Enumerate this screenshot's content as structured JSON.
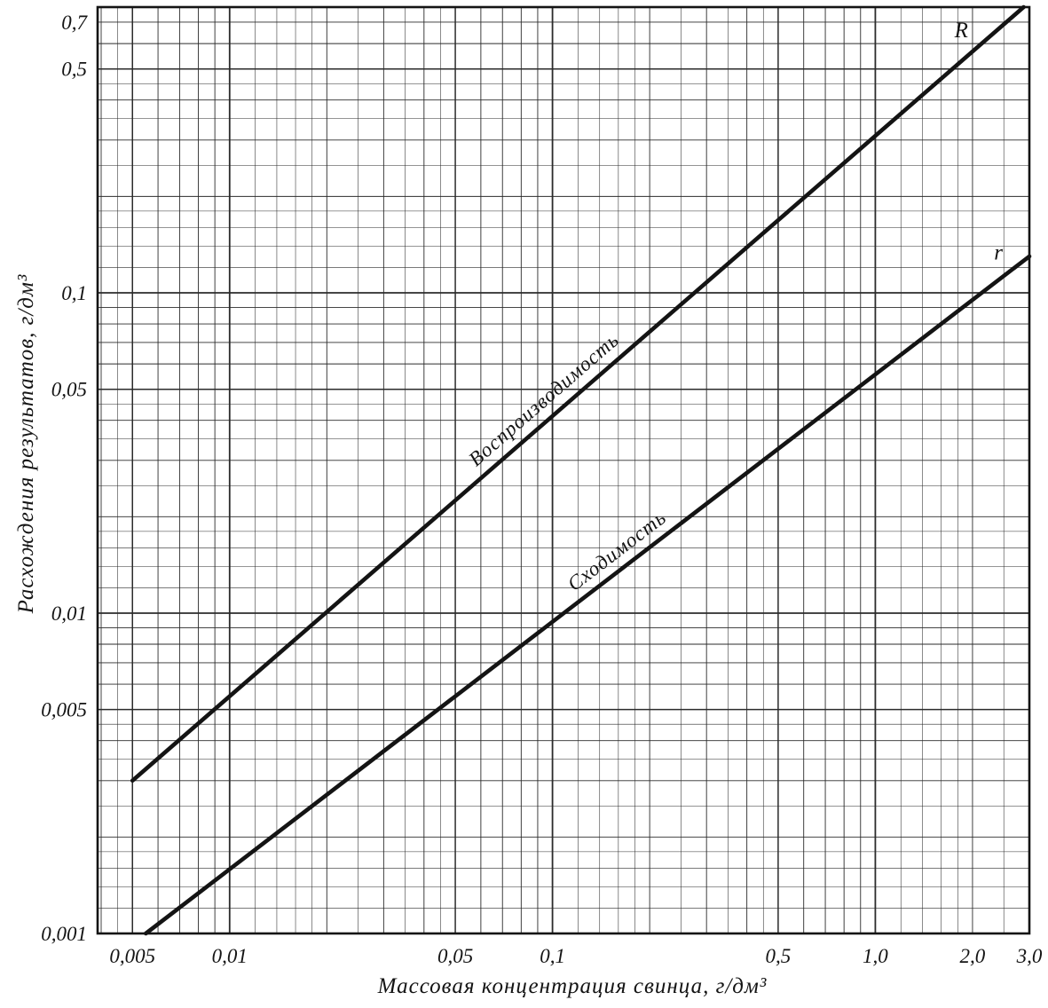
{
  "chart_data": {
    "type": "line",
    "title": "",
    "xlabel": "Массовая концентрация свинца, г/дм³",
    "ylabel": "Расхождения результатов, г/дм³",
    "x_scale": "log",
    "y_scale": "log",
    "x_range": [
      0.0039,
      3.0
    ],
    "y_range": [
      0.001,
      0.78
    ],
    "grid": "log-log graph paper, full minor divisions",
    "legend_position": "labels along lines",
    "x_ticks": [
      {
        "v": 0.005,
        "label": "0,005"
      },
      {
        "v": 0.01,
        "label": "0,01"
      },
      {
        "v": 0.05,
        "label": "0,05"
      },
      {
        "v": 0.1,
        "label": "0,1"
      },
      {
        "v": 0.5,
        "label": "0,5"
      },
      {
        "v": 1.0,
        "label": "1,0"
      },
      {
        "v": 2.0,
        "label": "2,0"
      },
      {
        "v": 3.0,
        "label": "3,0"
      }
    ],
    "y_ticks": [
      {
        "v": 0.001,
        "label": "0,001"
      },
      {
        "v": 0.005,
        "label": "0,005"
      },
      {
        "v": 0.01,
        "label": "0,01"
      },
      {
        "v": 0.05,
        "label": "0,05"
      },
      {
        "v": 0.1,
        "label": "0,1"
      },
      {
        "v": 0.5,
        "label": "0,5"
      },
      {
        "v": 0.7,
        "label": "0,7"
      }
    ],
    "series": [
      {
        "id": "R",
        "letter": "R",
        "label": "Воспроизводимость",
        "points": [
          [
            0.005,
            0.003
          ],
          [
            2.88,
            0.78
          ]
        ]
      },
      {
        "id": "r",
        "letter": "r",
        "label": "Сходимость",
        "points": [
          [
            0.0055,
            0.001
          ],
          [
            3.0,
            0.13
          ]
        ]
      }
    ],
    "colors": {
      "line": "#141414",
      "grid": "#2b2b2b",
      "background": "#ffffff",
      "text": "#141414"
    }
  }
}
